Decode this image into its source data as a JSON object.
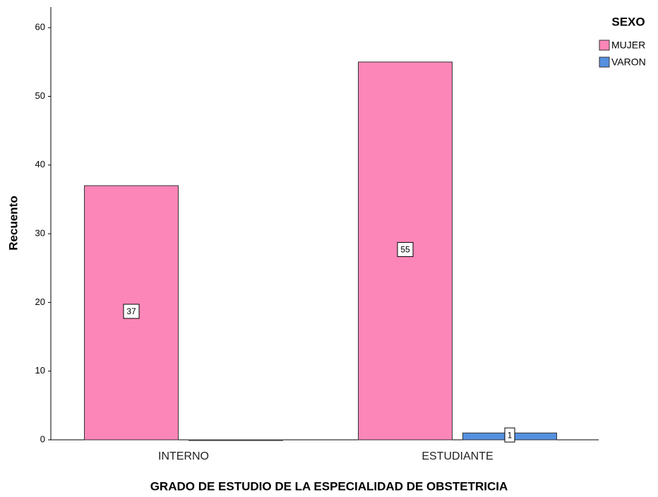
{
  "chart_data": {
    "type": "bar",
    "x_label": "GRADO DE ESTUDIO DE LA ESPECIALIDAD DE OBSTETRICIA",
    "y_label": "Recuento",
    "legend_title": "SEXO",
    "legend": "top-right",
    "categories": [
      "INTERNO",
      "ESTUDIANTE"
    ],
    "series": [
      {
        "name": "MUJER",
        "color": "#fb86b7",
        "values": [
          37,
          55
        ]
      },
      {
        "name": "VARON",
        "color": "#5591e0",
        "values": [
          0,
          1
        ]
      }
    ],
    "ylim": [
      0,
      63
    ],
    "yticks": [
      0,
      10,
      20,
      30,
      40,
      50,
      60
    ],
    "grid": false
  }
}
